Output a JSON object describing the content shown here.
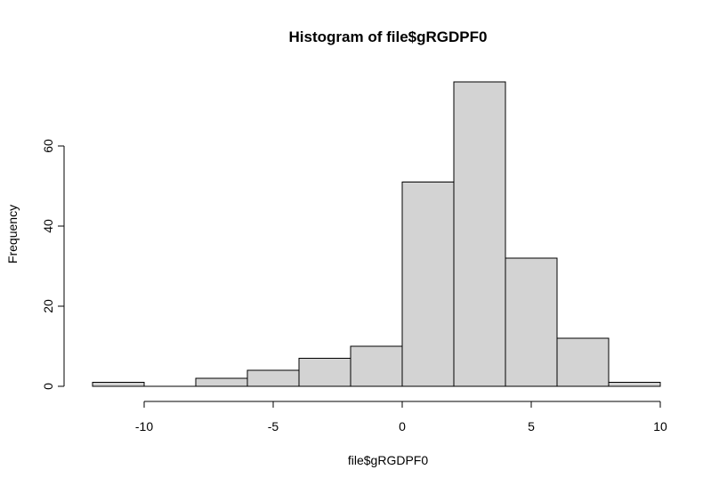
{
  "chart_data": {
    "type": "bar",
    "title": "Histogram of file$gRGDPF0",
    "xlabel": "file$gRGDPF0",
    "ylabel": "Frequency",
    "bins": [
      {
        "start": -12,
        "end": -10,
        "count": 1
      },
      {
        "start": -10,
        "end": -8,
        "count": 0
      },
      {
        "start": -8,
        "end": -6,
        "count": 2
      },
      {
        "start": -6,
        "end": -4,
        "count": 4
      },
      {
        "start": -4,
        "end": -2,
        "count": 7
      },
      {
        "start": -2,
        "end": 0,
        "count": 10
      },
      {
        "start": 0,
        "end": 2,
        "count": 51
      },
      {
        "start": 2,
        "end": 4,
        "count": 76
      },
      {
        "start": 4,
        "end": 6,
        "count": 32
      },
      {
        "start": 6,
        "end": 8,
        "count": 12
      },
      {
        "start": 8,
        "end": 10,
        "count": 1
      }
    ],
    "xlim": [
      -12,
      10
    ],
    "ylim": [
      0,
      76
    ],
    "x_ticks": [
      -10,
      -5,
      0,
      5,
      10
    ],
    "y_ticks": [
      0,
      20,
      40,
      60
    ],
    "bar_color": "#d3d3d3",
    "grid": false
  }
}
